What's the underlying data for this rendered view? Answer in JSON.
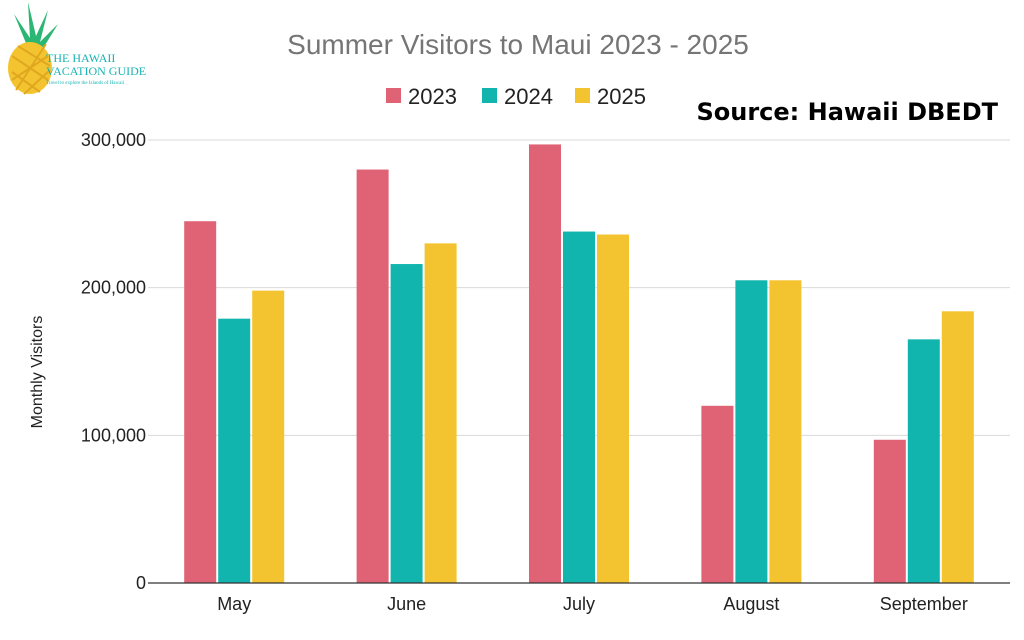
{
  "logo": {
    "line1": "THE HAWAII",
    "line2": "VACATION GUIDE",
    "tagline": "Travel to explore the Islands of Hawaii"
  },
  "source_note": "Source: Hawaii DBEDT",
  "colors": {
    "2023": "#e06275",
    "2024": "#11b5ae",
    "2025": "#f4c430"
  },
  "chart_data": {
    "type": "bar",
    "title": "Summer Visitors to Maui 2023 - 2025",
    "xlabel": "",
    "ylabel": "Monthly Visitors",
    "ylim": [
      0,
      300000
    ],
    "yticks": [
      0,
      100000,
      200000,
      300000
    ],
    "ytick_labels": [
      "0",
      "100,000",
      "200,000",
      "300,000"
    ],
    "categories": [
      "May",
      "June",
      "July",
      "August",
      "September"
    ],
    "legend_position": "top",
    "grid": true,
    "series": [
      {
        "name": "2023",
        "values": [
          245000,
          280000,
          297000,
          120000,
          97000
        ]
      },
      {
        "name": "2024",
        "values": [
          179000,
          216000,
          238000,
          205000,
          165000
        ]
      },
      {
        "name": "2025",
        "values": [
          198000,
          230000,
          236000,
          205000,
          184000
        ]
      }
    ]
  }
}
